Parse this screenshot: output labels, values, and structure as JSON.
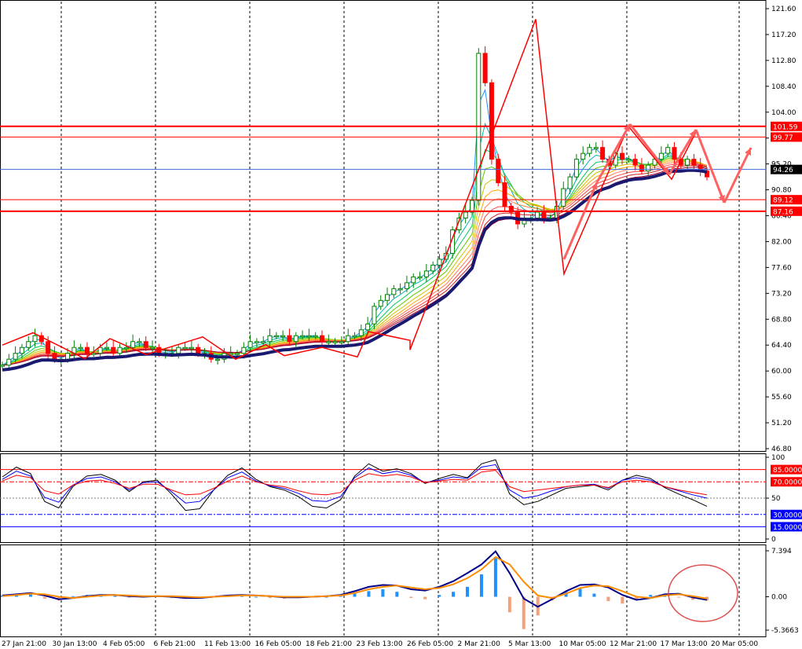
{
  "chart_data": [
    {
      "type": "candlestick",
      "panel": "price",
      "y_axis_labels": [
        "121.60",
        "117.20",
        "112.80",
        "108.40",
        "104.00",
        "99.60",
        "95.20",
        "90.80",
        "86.40",
        "82.00",
        "77.60",
        "73.20",
        "68.80",
        "64.40",
        "60.00",
        "55.60",
        "51.20",
        "46.80"
      ],
      "ylim": [
        46.8,
        121.6
      ],
      "price_levels": [
        {
          "label": "101.59",
          "value": 101.59,
          "color": "#ff0000",
          "style": "thick"
        },
        {
          "label": "99.77",
          "value": 99.77,
          "color": "#ff0000",
          "style": "thin"
        },
        {
          "label": "94.26",
          "value": 94.26,
          "color": "#4169e1",
          "style": "current"
        },
        {
          "label": "89.12",
          "value": 89.12,
          "color": "#ff0000",
          "style": "thin"
        },
        {
          "label": "87.16",
          "value": 87.16,
          "color": "#ff0000",
          "style": "thick"
        }
      ],
      "current_price": 94.26,
      "close_series": [
        61,
        62,
        63,
        64,
        65,
        66,
        65,
        63,
        62,
        62,
        63,
        64,
        64,
        63,
        63,
        64,
        64,
        63,
        64,
        64,
        65,
        65,
        64,
        64,
        63,
        63,
        63,
        64,
        64,
        64,
        63,
        63,
        62,
        62,
        63,
        63,
        63,
        64,
        65,
        65,
        65,
        66,
        66,
        66,
        65,
        66,
        66,
        66,
        66,
        65,
        65,
        65,
        65,
        66,
        66,
        67,
        68,
        71,
        72,
        73,
        74,
        74,
        75,
        76,
        76,
        77,
        78,
        79,
        80,
        84,
        86,
        87,
        89,
        114,
        109,
        96,
        92,
        88,
        87,
        85,
        86,
        86,
        87,
        86,
        86,
        88,
        91,
        93,
        96,
        97,
        98,
        98,
        96,
        95,
        97,
        96,
        96,
        95,
        94,
        95,
        96,
        97,
        98,
        96,
        95,
        96,
        95,
        94,
        93
      ],
      "zigzag": [
        64.4,
        66.5,
        62.1,
        65.5,
        62.8,
        65.8,
        62.0,
        64.5,
        62.6,
        64.0,
        62.4,
        66.7,
        65.2,
        63.6,
        119.8,
        76.5,
        101.6,
        92.6,
        100.6
      ]
    },
    {
      "type": "line",
      "panel": "oscillator",
      "y_axis_labels": [
        "100",
        "50",
        "0"
      ],
      "ylim": [
        0,
        100
      ],
      "levels": [
        {
          "label": "85.0000",
          "value": 85,
          "color": "#ff0000",
          "style": "solid"
        },
        {
          "label": "70.0000",
          "value": 70,
          "color": "#ff0000",
          "style": "dashdot"
        },
        {
          "label": "30.0000",
          "value": 30,
          "color": "#0000ff",
          "style": "dashdot"
        },
        {
          "label": "15.0000",
          "value": 15,
          "color": "#0000ff",
          "style": "solid"
        }
      ],
      "series": [
        {
          "color": "#000000",
          "values": [
            76,
            88,
            80,
            46,
            38,
            64,
            77,
            79,
            72,
            58,
            70,
            72,
            55,
            35,
            37,
            60,
            78,
            87,
            73,
            64,
            60,
            52,
            40,
            38,
            48,
            77,
            92,
            83,
            86,
            80,
            68,
            74,
            79,
            75,
            92,
            97,
            55,
            42,
            46,
            54,
            62,
            64,
            66,
            60,
            72,
            78,
            74,
            63,
            55,
            48,
            40
          ]
        },
        {
          "color": "#0000ff",
          "values": [
            73,
            83,
            77,
            51,
            45,
            66,
            74,
            76,
            70,
            60,
            69,
            70,
            58,
            44,
            46,
            60,
            75,
            82,
            71,
            65,
            62,
            56,
            47,
            46,
            52,
            75,
            87,
            80,
            83,
            78,
            69,
            72,
            76,
            74,
            88,
            91,
            60,
            50,
            53,
            59,
            64,
            66,
            67,
            62,
            72,
            75,
            72,
            64,
            59,
            54,
            50
          ]
        },
        {
          "color": "#ff0000",
          "values": [
            71,
            78,
            75,
            59,
            55,
            66,
            71,
            72,
            68,
            62,
            67,
            67,
            60,
            54,
            55,
            62,
            71,
            77,
            70,
            66,
            64,
            59,
            55,
            54,
            57,
            72,
            80,
            77,
            79,
            76,
            69,
            71,
            73,
            72,
            82,
            84,
            64,
            58,
            60,
            62,
            64,
            66,
            66,
            63,
            70,
            72,
            70,
            64,
            60,
            57,
            54
          ]
        }
      ]
    },
    {
      "type": "bar",
      "panel": "macd",
      "y_axis_labels": [
        "7.394",
        "0.00",
        "-5.3663"
      ],
      "ylim": [
        -5.3663,
        7.394
      ],
      "histogram": [
        0.2,
        0.4,
        0.5,
        -0.3,
        -0.6,
        0.1,
        0.3,
        0.4,
        0.2,
        -0.1,
        0.0,
        0.1,
        -0.2,
        -0.3,
        -0.1,
        0.1,
        0.3,
        0.2,
        0.0,
        -0.2,
        -0.3,
        -0.2,
        -0.1,
        0.0,
        0.2,
        0.5,
        0.9,
        1.2,
        0.8,
        -0.2,
        -0.4,
        0.3,
        0.8,
        1.6,
        3.6,
        6.2,
        -2.5,
        -5.2,
        -3.0,
        -0.6,
        0.8,
        1.3,
        0.5,
        -0.7,
        -1.1,
        -0.4,
        0.3,
        0.5,
        -0.1,
        -0.5,
        -0.6
      ],
      "series": [
        {
          "color": "#00008b",
          "values": [
            0.2,
            0.4,
            0.6,
            0.2,
            -0.4,
            -0.2,
            0.1,
            0.3,
            0.3,
            0.1,
            0.0,
            0.1,
            0.0,
            -0.2,
            -0.2,
            0.0,
            0.2,
            0.3,
            0.2,
            0.1,
            -0.1,
            -0.1,
            0.0,
            0.1,
            0.3,
            0.9,
            1.6,
            1.9,
            1.8,
            1.2,
            1.0,
            1.6,
            2.5,
            3.8,
            5.2,
            7.3,
            3.8,
            -0.3,
            -1.6,
            -0.4,
            0.9,
            1.9,
            2.0,
            1.5,
            0.3,
            -0.5,
            -0.2,
            0.4,
            0.5,
            -0.1,
            -0.5
          ]
        },
        {
          "color": "#ff8c00",
          "values": [
            0.1,
            0.3,
            0.5,
            0.4,
            0.0,
            -0.2,
            0.0,
            0.2,
            0.3,
            0.2,
            0.1,
            0.1,
            0.1,
            0.0,
            -0.1,
            0.0,
            0.1,
            0.2,
            0.2,
            0.1,
            0.0,
            0.0,
            0.0,
            0.1,
            0.2,
            0.6,
            1.2,
            1.6,
            1.8,
            1.5,
            1.2,
            1.4,
            2.0,
            3.0,
            4.4,
            6.4,
            5.2,
            2.4,
            0.2,
            -0.2,
            0.5,
            1.4,
            1.8,
            1.7,
            0.9,
            0.0,
            -0.2,
            0.2,
            0.4,
            0.1,
            -0.3
          ]
        }
      ]
    }
  ],
  "x_axis_labels": [
    "27 Jan 21:00",
    "30 Jan 13:00",
    "4 Feb 05:00",
    "6 Feb 21:00",
    "11 Feb 13:00",
    "16 Feb 05:00",
    "18 Feb 21:00",
    "23 Feb 13:00",
    "26 Feb 05:00",
    "2 Mar 21:00",
    "5 Mar 13:00",
    "10 Mar 05:00",
    "12 Mar 21:00",
    "17 Mar 13:00",
    "20 Mar 05:00"
  ],
  "colors": {
    "zigzag": "#ff0000",
    "forecast_arrows": "#ff6060",
    "long_ma": "#191970",
    "bull_candle": "#008000",
    "bear_candle": "#ff0000",
    "grid": "#000000",
    "highlight_circle": "#e05050"
  }
}
